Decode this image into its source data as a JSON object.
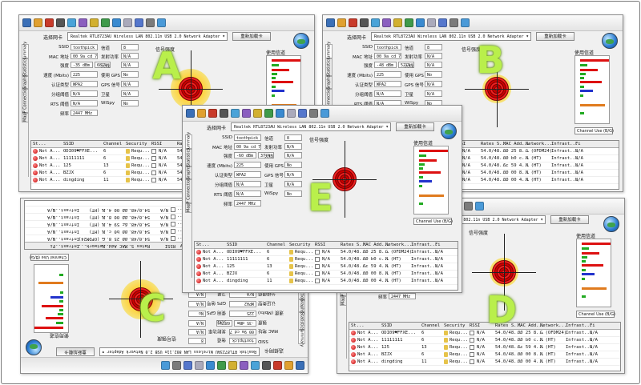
{
  "labels": {
    "adapter_label": "选择网卡",
    "adapter_value": "Realtek RTL8723AU Wireless LAN 802.11n USB 2.0 Network Adapter",
    "reload_button": "重新加载卡",
    "signal_title": "信号强度",
    "channel_title": "使用信道",
    "channel_select": "Channel Use (B/G)",
    "vtabs": [
      "Summary",
      "Statistics",
      "Graphs",
      "IP Connection",
      "Map"
    ]
  },
  "fields": [
    {
      "label": "SSID",
      "value": "toothpick"
    },
    {
      "label": "MAC 地址",
      "value": "00 9a cd 78 74 14"
    },
    {
      "label": "强度",
      "value": "-35 dBm"
    },
    {
      "label": "速度 (Mbits)",
      "value": "225"
    },
    {
      "label": "认证类型",
      "value": "WPA2"
    },
    {
      "label": "分组阈值",
      "value": "N/A"
    },
    {
      "label": "RTS 阈值",
      "value": "N/A"
    },
    {
      "label": "频率",
      "value": "2447 MHz"
    }
  ],
  "fields_right": [
    {
      "label": "信道",
      "value": "8"
    },
    {
      "label": "发射功率",
      "value": "N/A"
    },
    {
      "label": "天线",
      "value": "N/A"
    },
    {
      "label": "使用 GPS",
      "value": "No"
    },
    {
      "label": "GPS 信号",
      "value": "N/A"
    },
    {
      "label": "卫星",
      "value": "N/A"
    },
    {
      "label": "WiSpy",
      "value": "No"
    }
  ],
  "percent_variants": {
    "A": "68 %",
    "B": "52 %",
    "E": "37 %"
  },
  "dbm_variants": {
    "A": "-35 dBm",
    "B": "-48 dBm",
    "E": "-60 dBm"
  },
  "table": {
    "headers": [
      "St...",
      "SSID",
      "Channel",
      "Security",
      "RSSI",
      "Rates S...",
      "MAC Add...",
      "Network...",
      "Infrast...",
      "Fi"
    ],
    "rows": [
      {
        "status": "Not A...",
        "ssid": "ODI09♥FFXE...",
        "channel": "6",
        "security": "Requ...",
        "rssi": "N/A",
        "rates": "54.0/48...",
        "mac": "00 25 8...",
        "network": "G (OFDM24)",
        "infra": "Infrast...",
        "fi": "N/A"
      },
      {
        "status": "Not A...",
        "ssid": "11111111",
        "channel": "6",
        "security": "Requ...",
        "rssi": "N/A",
        "rates": "54.0/48...",
        "mac": "00 b0 c...",
        "network": "N (HT)",
        "infra": "Infrast...",
        "fi": "N/A"
      },
      {
        "status": "Not A...",
        "ssid": "125",
        "channel": "13",
        "security": "Requ...",
        "rssi": "N/A",
        "rates": "54.0/48...",
        "mac": "6c 59 4...",
        "network": "N (HT)",
        "infra": "Infrast...",
        "fi": "N/A"
      },
      {
        "status": "Not A...",
        "ssid": "BZJX",
        "channel": "6",
        "security": "Requ...",
        "rssi": "N/A",
        "rates": "54.0/48...",
        "mac": "00 00 8...",
        "network": "N (HT)",
        "infra": "Infrast...",
        "fi": "N/A"
      },
      {
        "status": "Not A...",
        "ssid": "dingding",
        "channel": "11",
        "security": "Requ...",
        "rssi": "N/A",
        "rates": "54.0/48...",
        "mac": "00 00 4...",
        "network": "N (HT)",
        "infra": "Infrast...",
        "fi": "N/A"
      }
    ]
  },
  "badges": [
    "A",
    "B",
    "C",
    "D",
    "E"
  ],
  "colors": {
    "badge": "#b9ef4b",
    "bar_red": "#d11",
    "bar_green": "#2a2",
    "bar_blue": "#2233cc",
    "bar_orange": "#e07b1e"
  }
}
